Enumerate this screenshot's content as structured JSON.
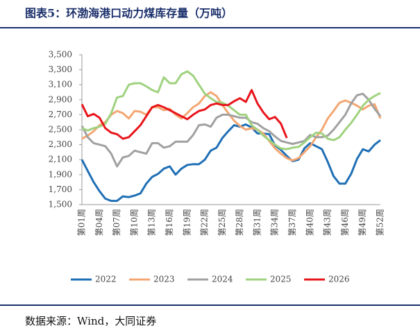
{
  "chart_data": {
    "type": "line",
    "title": "图表5：环渤海港口动力煤库存量（万吨）",
    "source": "数据来源：Wind，大同证券",
    "categories": [
      "第01周",
      null,
      null,
      "第04周",
      null,
      null,
      "第07周",
      null,
      null,
      "第10周",
      null,
      null,
      "第13周",
      null,
      null,
      "第16周",
      null,
      null,
      "第19周",
      null,
      null,
      "第22周",
      null,
      null,
      "第25周",
      null,
      null,
      "第28周",
      null,
      null,
      "第31周",
      null,
      null,
      "第34周",
      null,
      null,
      "第37周",
      null,
      null,
      "第40周",
      null,
      null,
      "第43周",
      null,
      null,
      "第46周",
      null,
      null,
      "第49周",
      null,
      null,
      "第52周"
    ],
    "ylim": [
      1500,
      3500
    ],
    "yticks": [
      {
        "value": 1500,
        "label": "1,500"
      },
      {
        "value": 1700,
        "label": "1,700"
      },
      {
        "value": 1900,
        "label": "1,900"
      },
      {
        "value": 2100,
        "label": "2,100"
      },
      {
        "value": 2300,
        "label": "2,300"
      },
      {
        "value": 2500,
        "label": "2,500"
      },
      {
        "value": 2700,
        "label": "2,700"
      },
      {
        "value": 2900,
        "label": "2,900"
      },
      {
        "value": 3100,
        "label": "3,100"
      },
      {
        "value": 3300,
        "label": "3,300"
      },
      {
        "value": 3500,
        "label": "3,500"
      }
    ],
    "grid": false,
    "legend": "bottom",
    "series": [
      {
        "name": "2022",
        "color": "#1f6fb5",
        "values": [
          2100,
          1950,
          1800,
          1680,
          1580,
          1550,
          1550,
          1610,
          1600,
          1620,
          1650,
          1780,
          1870,
          1910,
          1980,
          2010,
          1900,
          1980,
          2030,
          2040,
          2040,
          2100,
          2220,
          2260,
          2390,
          2480,
          2560,
          2540,
          2570,
          2530,
          2450,
          2450,
          2440,
          2290,
          2230,
          2150,
          2080,
          2100,
          2250,
          2320,
          2280,
          2240,
          2070,
          1880,
          1780,
          1780,
          1910,
          2110,
          2240,
          2210,
          2300,
          2360
        ]
      },
      {
        "name": "2023",
        "color": "#f4a672",
        "values": [
          2380,
          2420,
          2480,
          2560,
          2600,
          2700,
          2750,
          2720,
          2650,
          2750,
          2740,
          2700,
          2800,
          2800,
          2760,
          2780,
          2700,
          2650,
          2720,
          2800,
          2850,
          2950,
          3000,
          2950,
          2830,
          2720,
          2620,
          2550,
          2500,
          2520,
          2500,
          2450,
          2350,
          2250,
          2180,
          2120,
          2090,
          2120,
          2200,
          2280,
          2400,
          2500,
          2650,
          2750,
          2860,
          2890,
          2860,
          2820,
          2770,
          2820,
          2840,
          2650
        ]
      },
      {
        "name": "2024",
        "color": "#a0a0a0",
        "values": [
          2550,
          2400,
          2320,
          2300,
          2280,
          2180,
          2010,
          2130,
          2150,
          2220,
          2200,
          2180,
          2320,
          2320,
          2260,
          2280,
          2340,
          2340,
          2340,
          2430,
          2560,
          2570,
          2540,
          2660,
          2700,
          2700,
          2680,
          2660,
          2660,
          2600,
          2580,
          2520,
          2480,
          2410,
          2350,
          2330,
          2310,
          2330,
          2350,
          2430,
          2400,
          2400,
          2420,
          2500,
          2600,
          2700,
          2850,
          2960,
          2980,
          2900,
          2780,
          2680
        ]
      },
      {
        "name": "2025",
        "color": "#9fd27f",
        "values": [
          2520,
          2490,
          2520,
          2540,
          2580,
          2720,
          2930,
          2950,
          3100,
          3120,
          3120,
          3080,
          3030,
          3000,
          3200,
          3120,
          3120,
          3240,
          3280,
          3220,
          3100,
          2980,
          2920,
          2870,
          2860,
          2820,
          2760,
          2700,
          2700,
          2560,
          2500,
          2420,
          2360,
          2300,
          2250,
          2240,
          2260,
          2270,
          2330,
          2400,
          2460,
          2450,
          2380,
          2360,
          2400,
          2500,
          2590,
          2700,
          2820,
          2900,
          2950,
          2990
        ]
      },
      {
        "name": "2026",
        "color": "#e8141b",
        "values": [
          2840,
          2680,
          2710,
          2660,
          2520,
          2460,
          2440,
          2380,
          2400,
          2480,
          2560,
          2680,
          2800,
          2830,
          2800,
          2760,
          2720,
          2680,
          2640,
          2700,
          2750,
          2770,
          2830,
          2850,
          2830,
          2830,
          2880,
          2920,
          2870,
          3030,
          2850,
          2730,
          2640,
          2670,
          2580,
          2390,
          null,
          null,
          null,
          null,
          null,
          null,
          null,
          null,
          null,
          null,
          null,
          null,
          null,
          null,
          null,
          null
        ]
      }
    ]
  }
}
